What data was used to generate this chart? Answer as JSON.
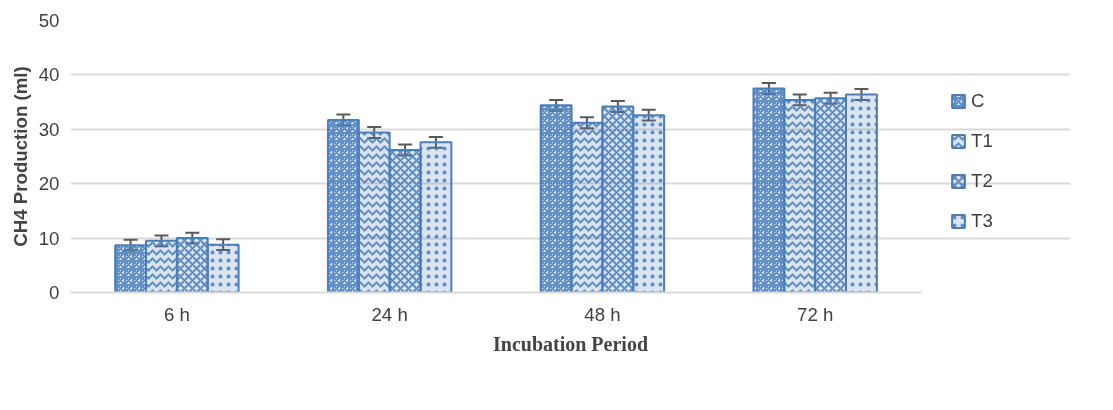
{
  "chart_data": {
    "type": "bar",
    "xlabel": "Incubation Period",
    "ylabel": "CH4 Production (ml)",
    "categories": [
      "6 h",
      "24 h",
      "48 h",
      "72 h"
    ],
    "series": [
      {
        "name": "C",
        "color": "#4a7ebb",
        "values": [
          8.7,
          31.7,
          34.4,
          37.5
        ],
        "errors": [
          1.0,
          1.0,
          1.0,
          1.0
        ]
      },
      {
        "name": "T1",
        "color": "#4a7ebb",
        "values": [
          9.5,
          29.4,
          31.2,
          35.4
        ],
        "errors": [
          1.0,
          1.0,
          1.0,
          1.0
        ]
      },
      {
        "name": "T2",
        "color": "#4a7ebb",
        "values": [
          10.0,
          26.2,
          34.2,
          35.7
        ],
        "errors": [
          1.0,
          1.0,
          1.0,
          1.0
        ]
      },
      {
        "name": "T3",
        "color": "#4a7ebb",
        "values": [
          8.8,
          27.6,
          32.6,
          36.4
        ],
        "errors": [
          1.0,
          1.0,
          1.0,
          1.0
        ]
      }
    ],
    "ylim": [
      0,
      50
    ],
    "yticks": [
      0,
      10,
      20,
      30,
      40,
      50
    ],
    "grid": "y",
    "legend": "right"
  }
}
